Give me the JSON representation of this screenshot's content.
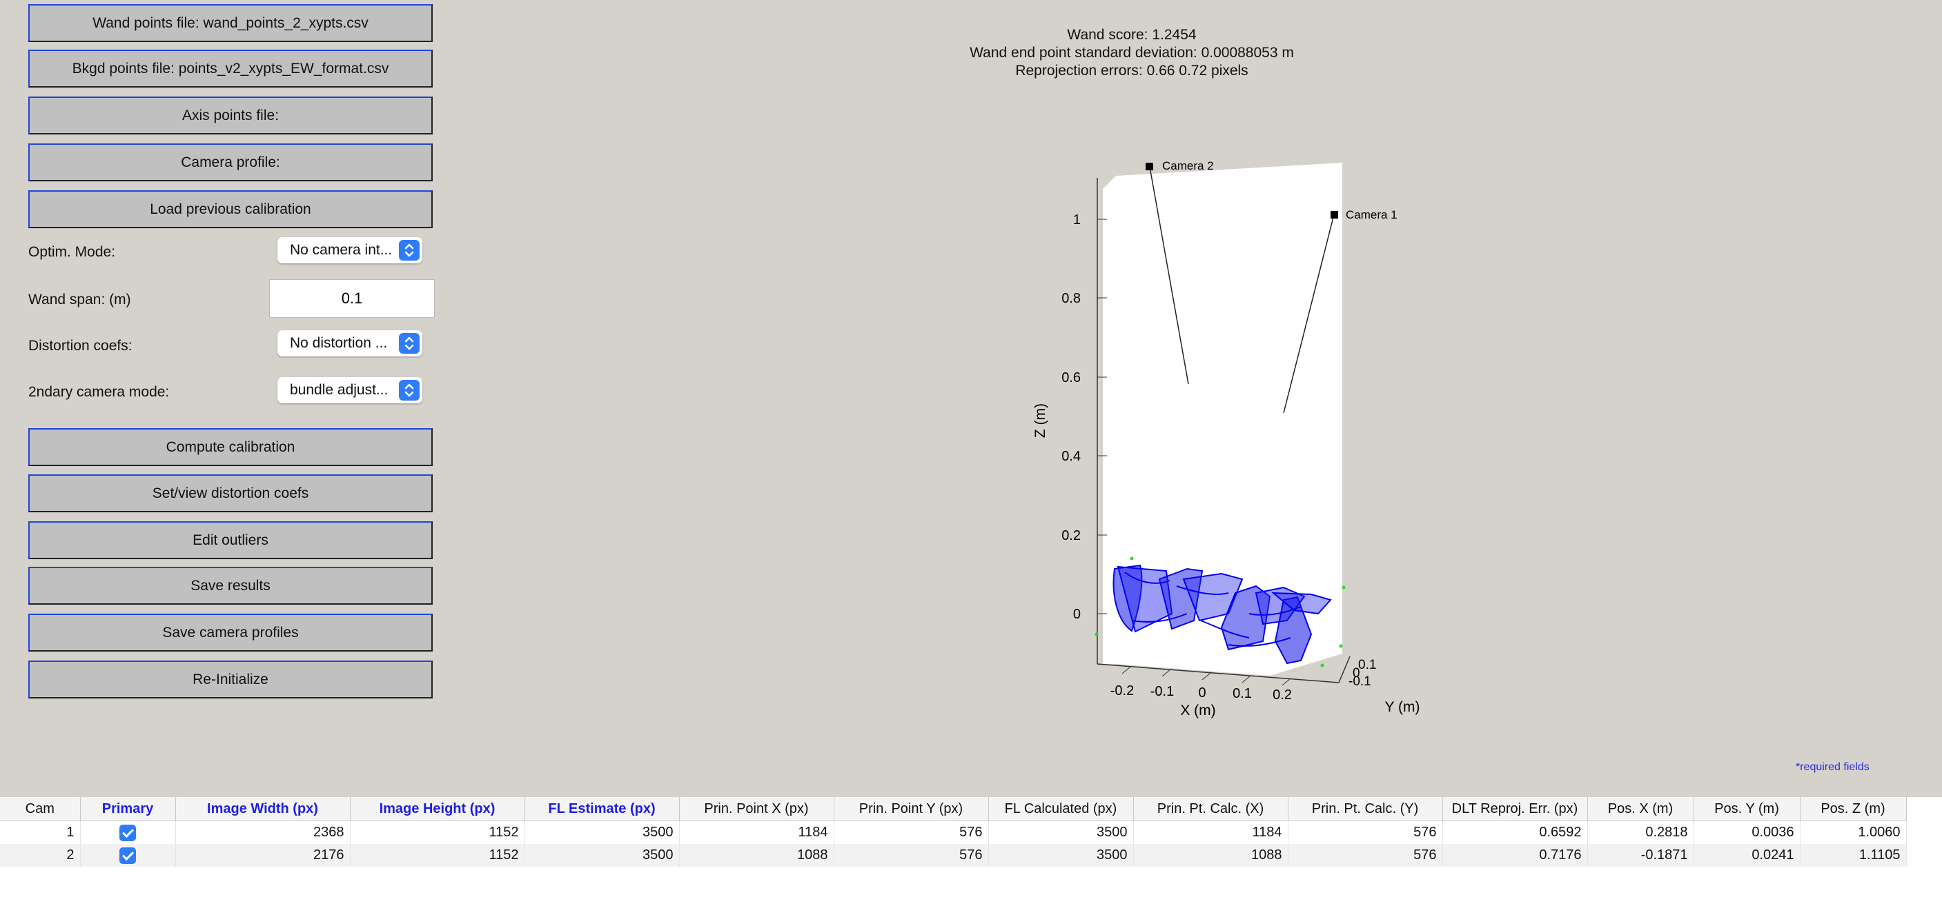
{
  "buttons": {
    "wand_points": "Wand points file: wand_points_2_xypts.csv",
    "bkgd_points": "Bkgd points file: points_v2_xypts_EW_format.csv",
    "axis_points": "Axis points file:",
    "camera_profile": "Camera profile:",
    "load_previous": "Load previous calibration",
    "compute": "Compute calibration",
    "set_view_distortion": "Set/view distortion coefs",
    "edit_outliers": "Edit outliers",
    "save_results": "Save results",
    "save_camera_profiles": "Save camera profiles",
    "reinitialize": "Re-Initialize"
  },
  "options": {
    "optim_mode_label": "Optim. Mode:",
    "optim_mode_value": "No camera int...",
    "wand_span_label": "Wand span: (m)",
    "wand_span_value": "0.1",
    "distortion_label": "Distortion coefs:",
    "distortion_value": "No distortion ...",
    "secondary_label": "2ndary camera mode:",
    "secondary_value": "bundle adjust..."
  },
  "stats": {
    "wand_score": "Wand score: 1.2454",
    "wand_std": "Wand end point standard deviation: 0.00088053 m",
    "reproj": "Reprojection errors: 0.66  0.72   pixels"
  },
  "plot": {
    "camera1": "Camera 1",
    "camera2": "Camera 2",
    "xlabel": "X (m)",
    "ylabel": "Y (m)",
    "zlabel": "Z (m)",
    "z_ticks": [
      "0",
      "0.2",
      "0.4",
      "0.6",
      "0.8",
      "1"
    ],
    "x_ticks": [
      "-0.2",
      "-0.1",
      "0",
      "0.1",
      "0.2"
    ],
    "y_ticks": [
      "0.1",
      "0",
      "-0.1"
    ],
    "wand_color": "#0000ee",
    "bkgd_color": "#22dd22"
  },
  "required_note": "*required fields",
  "table": {
    "headers": [
      "Cam",
      "Primary",
      "Image Width (px)",
      "Image Height (px)",
      "FL Estimate (px)",
      "Prin. Point X (px)",
      "Prin. Point Y (px)",
      "FL Calculated (px)",
      "Prin. Pt. Calc. (X)",
      "Prin. Pt. Calc. (Y)",
      "DLT Reproj. Err. (px)",
      "Pos. X (m)",
      "Pos. Y (m)",
      "Pos. Z (m)"
    ],
    "rows": [
      [
        "1",
        "",
        "2368",
        "1152",
        "3500",
        "1184",
        "576",
        "3500",
        "1184",
        "576",
        "0.6592",
        "0.2818",
        "0.0036",
        "1.0060"
      ],
      [
        "2",
        "",
        "2176",
        "1152",
        "3500",
        "1088",
        "576",
        "3500",
        "1088",
        "576",
        "0.7176",
        "-0.1871",
        "0.0241",
        "1.1105"
      ]
    ]
  }
}
